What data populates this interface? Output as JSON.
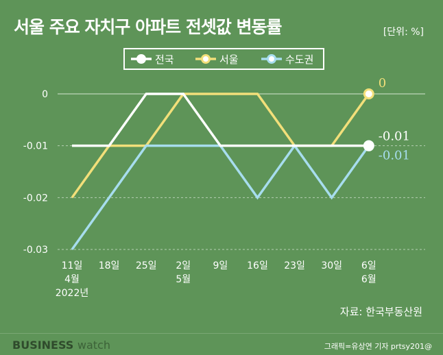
{
  "header": {
    "title": "서울 주요 자치구 아파트 전셋값 변동률",
    "unit": "[단위: %]"
  },
  "footer": {
    "source": "자료: 한국부동산원",
    "brand_strong": "BUSINESS",
    "brand_light": "watch",
    "credit": "그래픽=유상연 기자 prtsy201@"
  },
  "colors": {
    "background": "#5e9458",
    "national": "#ffffff",
    "seoul": "#f2df7a",
    "capital": "#a7ddee"
  },
  "chart_data": {
    "type": "line",
    "categories": [
      [
        "11일",
        "4월",
        "2022년"
      ],
      [
        "18일"
      ],
      [
        "25일"
      ],
      [
        "2일",
        "5월"
      ],
      [
        "9일"
      ],
      [
        "16일"
      ],
      [
        "23일"
      ],
      [
        "30일"
      ],
      [
        "6일",
        "6월"
      ]
    ],
    "series": [
      {
        "name": "전국",
        "color": "#ffffff",
        "values": [
          -0.01,
          -0.01,
          0,
          0,
          -0.01,
          -0.01,
          -0.01,
          -0.01,
          -0.01
        ]
      },
      {
        "name": "서울",
        "color": "#f2df7a",
        "values": [
          -0.02,
          -0.01,
          -0.01,
          0,
          0,
          0,
          -0.01,
          -0.01,
          0
        ]
      },
      {
        "name": "수도권",
        "color": "#a7ddee",
        "values": [
          -0.03,
          -0.02,
          -0.01,
          -0.01,
          -0.01,
          -0.02,
          -0.01,
          -0.02,
          -0.01
        ]
      }
    ],
    "yticks": [
      "0",
      "-0.01",
      "-0.02",
      "-0.03"
    ],
    "ylim": [
      -0.03,
      0
    ],
    "end_labels": [
      "-0.01",
      "0",
      "-0.01"
    ],
    "grid": true,
    "legend": "top-center"
  }
}
